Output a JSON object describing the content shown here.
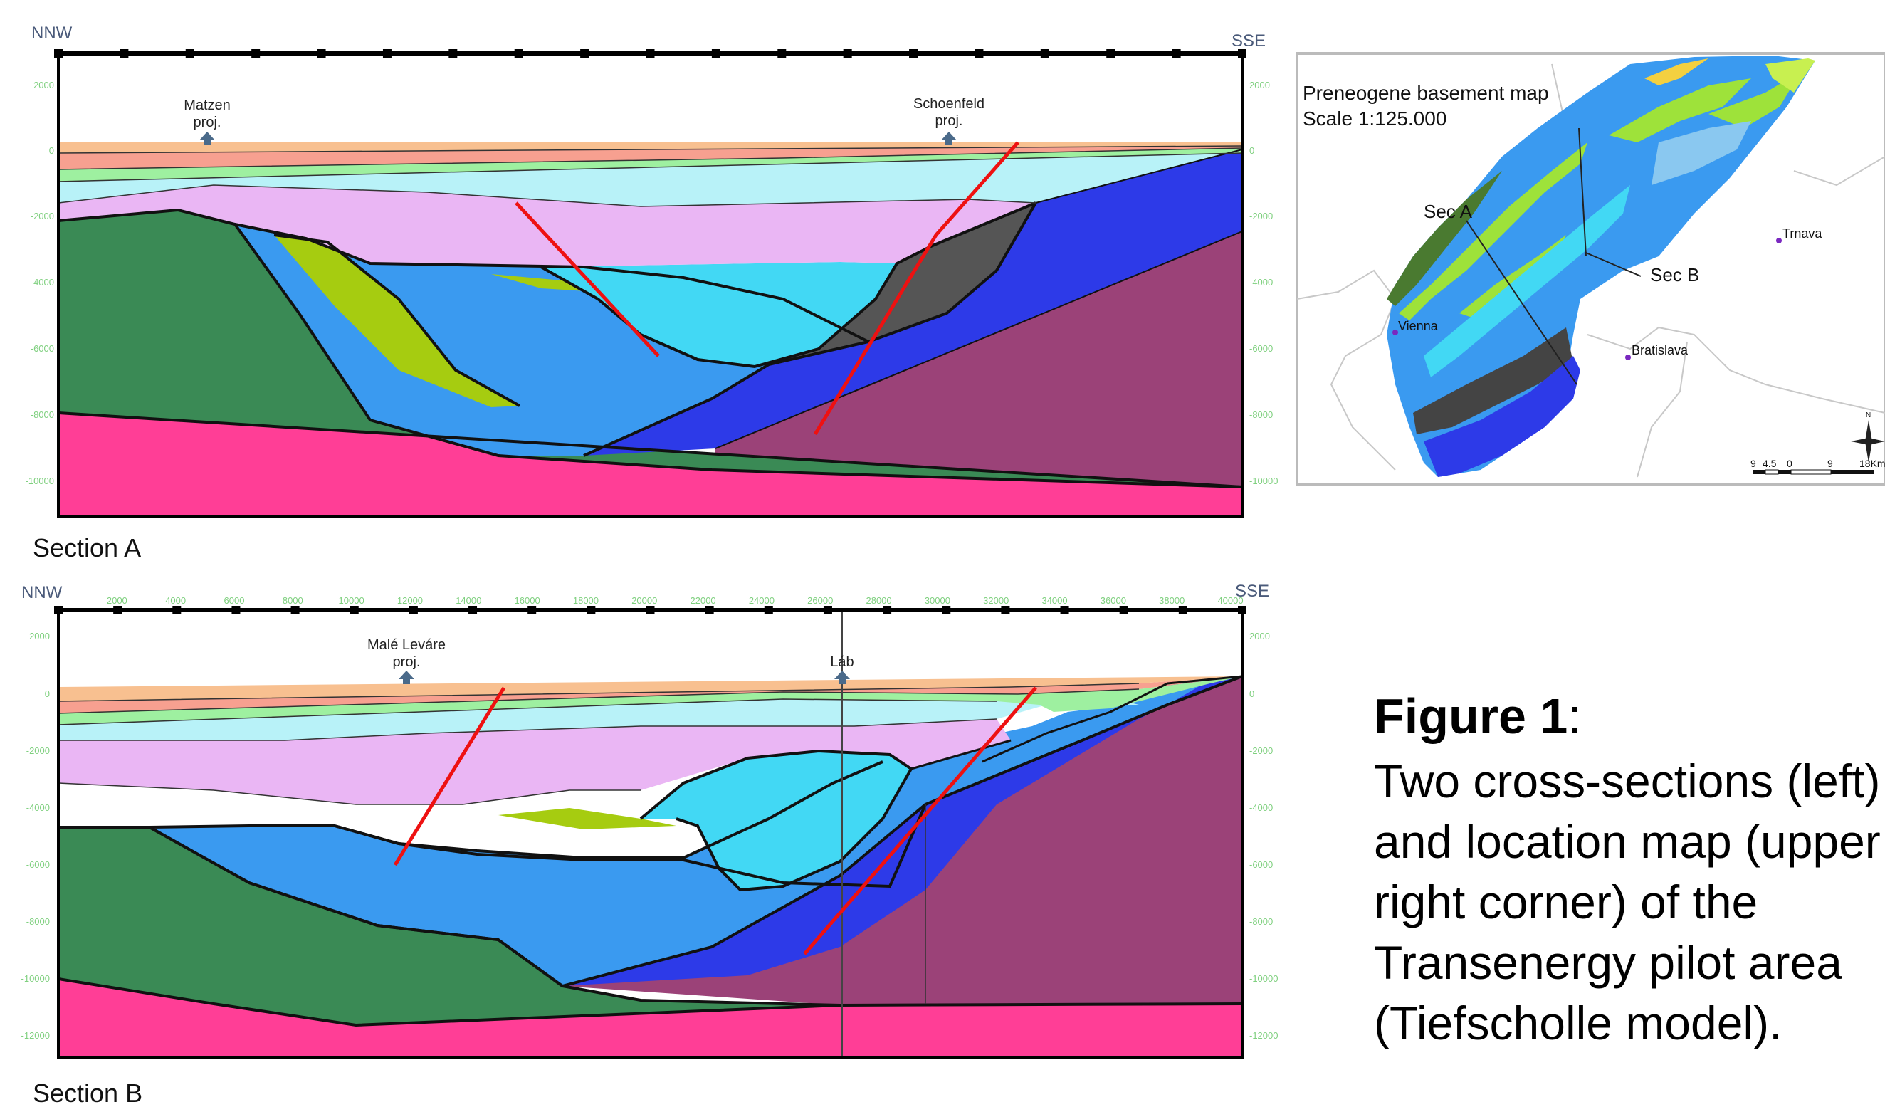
{
  "section_a": {
    "caption": "Section A",
    "dir_left": "NNW",
    "dir_right": "SSE",
    "proj_1_name": "Matzen",
    "proj_1_sub": "proj.",
    "proj_2_name": "Schoenfeld",
    "proj_2_sub": "proj.",
    "depth_ticks": [
      "2000",
      "0",
      "-2000",
      "-4000",
      "-6000",
      "-8000",
      "-10000"
    ]
  },
  "section_b": {
    "caption": "Section B",
    "dir_left": "NNW",
    "dir_right": "SSE",
    "proj_1_name": "Malé Leváre",
    "proj_1_sub": "proj.",
    "well_name": "Láb",
    "depth_ticks": [
      "2000",
      "0",
      "-2000",
      "-4000",
      "-6000",
      "-8000",
      "-10000",
      "-12000"
    ],
    "distance_ticks": [
      "2000",
      "4000",
      "6000",
      "8000",
      "10000",
      "12000",
      "14000",
      "16000",
      "18000",
      "20000",
      "22000",
      "24000",
      "26000",
      "28000",
      "30000",
      "32000",
      "34000",
      "36000",
      "38000",
      "40000"
    ]
  },
  "map": {
    "title": "Preneogene basement map",
    "scale": "Scale 1:125.000",
    "sec_a": "Sec A",
    "sec_b": "Sec B",
    "city_1": "Vienna",
    "city_2": "Bratislava",
    "city_3": "Trnava",
    "scale_bar": [
      "9",
      "4.5",
      "0",
      "9",
      "18Km"
    ],
    "north": "N"
  },
  "caption": {
    "heading": "Figure  1",
    "colon": ":",
    "lines": [
      "Two cross-sections (left)",
      "and location map (upper",
      "right corner) of the",
      "Transenergy pilot area",
      "(Tiefscholle model)."
    ]
  },
  "colors": {
    "green_basement": "#3a8a55",
    "magenta": "#ff3e96",
    "purple_brown": "#9b4278",
    "blue": "#2d3ae8",
    "mid_blue": "#3a9af0",
    "cyan": "#42d8f4",
    "light_cyan": "#b8f2f8",
    "lilac": "#eab6f4",
    "light_green": "#9ef0a0",
    "salmon": "#f7a090",
    "tan": "#f8c090",
    "yellow_green": "#a6cc10",
    "dark_grey": "#555555",
    "fault_red": "#ee1111"
  }
}
